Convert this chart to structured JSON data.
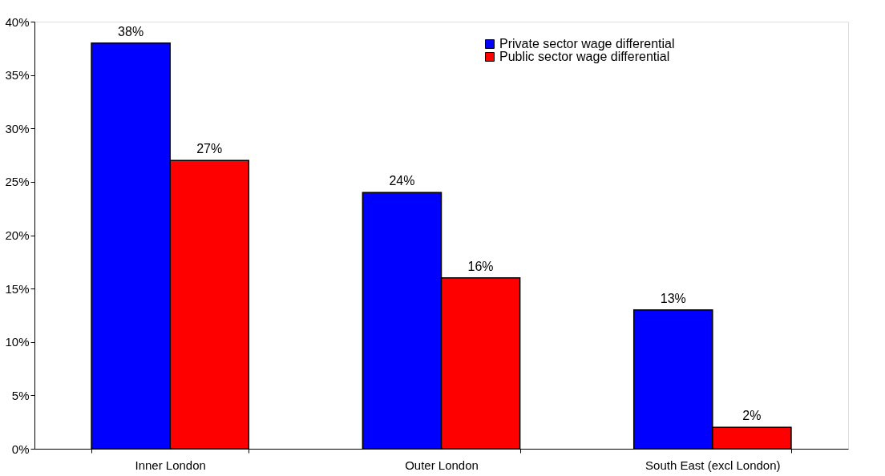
{
  "chart_data": {
    "type": "bar",
    "categories": [
      "Inner London",
      "Outer London",
      "South East (excl London)"
    ],
    "series": [
      {
        "name": "Private sector wage differential",
        "color": "#0000ff",
        "values": [
          38,
          24,
          13
        ],
        "value_labels": [
          "38%",
          "24%",
          "13%"
        ]
      },
      {
        "name": "Public sector wage differential",
        "color": "#ff0000",
        "values": [
          27,
          16,
          2
        ],
        "value_labels": [
          "27%",
          "16%",
          "2%"
        ]
      }
    ],
    "ylim": [
      0,
      40
    ],
    "yticks": [
      {
        "value": 0,
        "label": "0%"
      },
      {
        "value": 5,
        "label": "5%"
      },
      {
        "value": 10,
        "label": "10%"
      },
      {
        "value": 15,
        "label": "15%"
      },
      {
        "value": 20,
        "label": "20%"
      },
      {
        "value": 25,
        "label": "25%"
      },
      {
        "value": 30,
        "label": "30%"
      },
      {
        "value": 35,
        "label": "35%"
      },
      {
        "value": 40,
        "label": "40%"
      }
    ],
    "grid": false,
    "legend": "top right"
  }
}
